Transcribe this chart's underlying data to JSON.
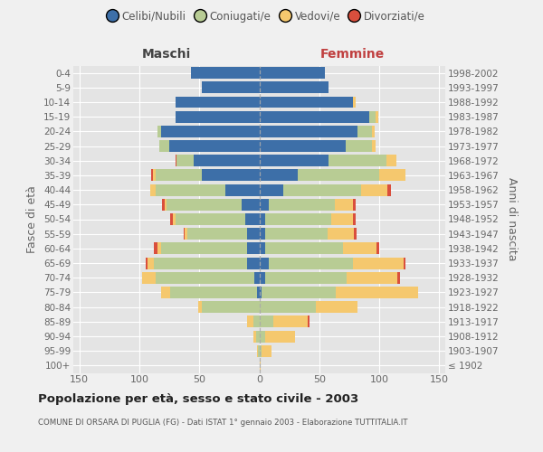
{
  "age_groups": [
    "100+",
    "95-99",
    "90-94",
    "85-89",
    "80-84",
    "75-79",
    "70-74",
    "65-69",
    "60-64",
    "55-59",
    "50-54",
    "45-49",
    "40-44",
    "35-39",
    "30-34",
    "25-29",
    "20-24",
    "15-19",
    "10-14",
    "5-9",
    "0-4"
  ],
  "birth_years": [
    "≤ 1902",
    "1903-1907",
    "1908-1912",
    "1913-1917",
    "1918-1922",
    "1923-1927",
    "1928-1932",
    "1933-1937",
    "1938-1942",
    "1943-1947",
    "1948-1952",
    "1953-1957",
    "1958-1962",
    "1963-1967",
    "1968-1972",
    "1973-1977",
    "1978-1982",
    "1983-1987",
    "1988-1992",
    "1993-1997",
    "1998-2002"
  ],
  "male_celibi": [
    0,
    0,
    0,
    0,
    0,
    2,
    4,
    10,
    10,
    10,
    12,
    15,
    28,
    48,
    55,
    75,
    82,
    70,
    70,
    48,
    57
  ],
  "male_coniugati": [
    0,
    1,
    3,
    5,
    48,
    72,
    82,
    78,
    72,
    50,
    58,
    62,
    58,
    38,
    14,
    8,
    3,
    0,
    0,
    0,
    0
  ],
  "male_vedovi": [
    0,
    1,
    2,
    5,
    3,
    8,
    12,
    5,
    3,
    2,
    2,
    2,
    5,
    3,
    0,
    0,
    0,
    0,
    0,
    0,
    0
  ],
  "male_divorziati": [
    0,
    0,
    0,
    0,
    0,
    0,
    0,
    2,
    3,
    1,
    2,
    2,
    0,
    1,
    1,
    0,
    0,
    0,
    0,
    0,
    0
  ],
  "female_nubili": [
    0,
    0,
    0,
    0,
    0,
    2,
    5,
    8,
    5,
    5,
    5,
    8,
    20,
    32,
    58,
    72,
    82,
    92,
    78,
    58,
    55
  ],
  "female_coniugate": [
    0,
    2,
    5,
    12,
    47,
    62,
    68,
    70,
    65,
    52,
    55,
    55,
    65,
    68,
    48,
    22,
    12,
    5,
    0,
    0,
    0
  ],
  "female_vedove": [
    1,
    8,
    25,
    28,
    35,
    68,
    42,
    42,
    28,
    22,
    18,
    15,
    22,
    22,
    8,
    3,
    2,
    2,
    2,
    0,
    0
  ],
  "female_divorziate": [
    0,
    0,
    0,
    2,
    0,
    0,
    2,
    2,
    2,
    2,
    2,
    2,
    3,
    0,
    0,
    0,
    0,
    0,
    0,
    0,
    0
  ],
  "color_celibi": "#3d6fa8",
  "color_coniugati": "#b8cc94",
  "color_vedovi": "#f5c86e",
  "color_divorziati": "#d94f3d",
  "xlim": 155,
  "title": "Popolazione per età, sesso e stato civile - 2003",
  "subtitle": "COMUNE DI ORSARA DI PUGLIA (FG) - Dati ISTAT 1° gennaio 2003 - Elaborazione TUTTITALIA.IT",
  "ylabel_left": "Fasce di età",
  "ylabel_right": "Anni di nascita",
  "label_maschi": "Maschi",
  "label_femmine": "Femmine",
  "legend_labels": [
    "Celibi/Nubili",
    "Coniugati/e",
    "Vedovi/e",
    "Divorziati/e"
  ],
  "bg_color": "#f0f0f0",
  "plot_bg_color": "#e4e4e4"
}
